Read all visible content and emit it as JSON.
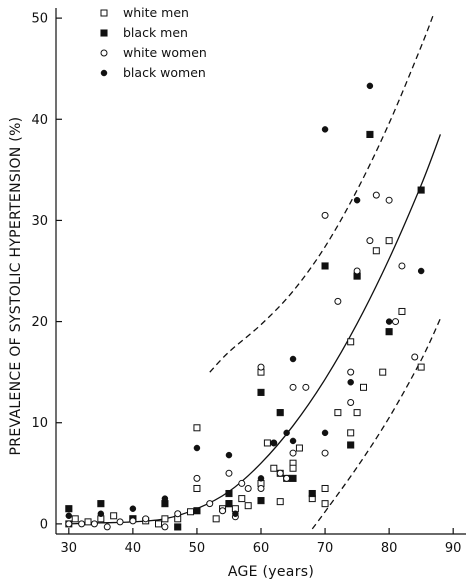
{
  "chart_data": {
    "type": "scatter",
    "xlabel": "AGE (years)",
    "ylabel": "PREVALENCE OF SYSTOLIC HYPERTENSION (%)",
    "xlim": [
      28,
      92
    ],
    "ylim": [
      -1,
      51
    ],
    "x_ticks": [
      30,
      40,
      50,
      60,
      70,
      80,
      90
    ],
    "x_tick_labels": [
      "30",
      "40",
      "50",
      "60",
      "70",
      "80",
      "90"
    ],
    "y_ticks": [
      0,
      10,
      20,
      30,
      40,
      50
    ],
    "y_tick_labels": [
      "0",
      "10",
      "20",
      "30",
      "40",
      "50"
    ],
    "grid": false,
    "legend_position": "top-left",
    "series": [
      {
        "name": "white men",
        "marker": "open-square",
        "points": [
          [
            30,
            0
          ],
          [
            31,
            0.5
          ],
          [
            33,
            0.2
          ],
          [
            35,
            0.5
          ],
          [
            37,
            0.8
          ],
          [
            40,
            0.5
          ],
          [
            42,
            0.3
          ],
          [
            44,
            0
          ],
          [
            45,
            0.5
          ],
          [
            47,
            0.5
          ],
          [
            49,
            1.2
          ],
          [
            50,
            3.5
          ],
          [
            50,
            9.5
          ],
          [
            53,
            0.5
          ],
          [
            54,
            1.5
          ],
          [
            55,
            2
          ],
          [
            56,
            1.5
          ],
          [
            57,
            2.5
          ],
          [
            58,
            1.8
          ],
          [
            60,
            15
          ],
          [
            60,
            4
          ],
          [
            61,
            8
          ],
          [
            62,
            5.5
          ],
          [
            63,
            5
          ],
          [
            63,
            2.2
          ],
          [
            64,
            4.5
          ],
          [
            65,
            6
          ],
          [
            65,
            5.5
          ],
          [
            66,
            7.5
          ],
          [
            68,
            2.5
          ],
          [
            70,
            2
          ],
          [
            70,
            3.5
          ],
          [
            72,
            11
          ],
          [
            74,
            18
          ],
          [
            74,
            9
          ],
          [
            75,
            11
          ],
          [
            75,
            24.5
          ],
          [
            76,
            13.5
          ],
          [
            78,
            27
          ],
          [
            79,
            15
          ],
          [
            80,
            28
          ],
          [
            82,
            21
          ],
          [
            85,
            15.5
          ]
        ]
      },
      {
        "name": "black men",
        "marker": "filled-square",
        "points": [
          [
            30,
            1.5
          ],
          [
            35,
            2
          ],
          [
            40,
            0.5
          ],
          [
            45,
            2
          ],
          [
            47,
            -0.3
          ],
          [
            50,
            1.3
          ],
          [
            55,
            3
          ],
          [
            55,
            2
          ],
          [
            60,
            13
          ],
          [
            60,
            2.3
          ],
          [
            63,
            11
          ],
          [
            65,
            4.5
          ],
          [
            68,
            3
          ],
          [
            70,
            25.5
          ],
          [
            74,
            7.8
          ],
          [
            75,
            24.5
          ],
          [
            77,
            38.5
          ],
          [
            80,
            19
          ],
          [
            85,
            33
          ]
        ]
      },
      {
        "name": "white women",
        "marker": "open-circle",
        "points": [
          [
            30,
            0
          ],
          [
            32,
            0
          ],
          [
            34,
            0
          ],
          [
            36,
            -0.3
          ],
          [
            38,
            0.2
          ],
          [
            40,
            0.3
          ],
          [
            42,
            0.5
          ],
          [
            45,
            -0.3
          ],
          [
            47,
            1
          ],
          [
            50,
            4.5
          ],
          [
            52,
            2
          ],
          [
            54,
            1.3
          ],
          [
            55,
            5
          ],
          [
            56,
            0.7
          ],
          [
            57,
            4
          ],
          [
            58,
            3.5
          ],
          [
            60,
            15.5
          ],
          [
            60,
            3.5
          ],
          [
            62,
            8
          ],
          [
            63,
            5
          ],
          [
            64,
            4.5
          ],
          [
            65,
            13.5
          ],
          [
            65,
            7
          ],
          [
            67,
            13.5
          ],
          [
            70,
            30.5
          ],
          [
            70,
            7
          ],
          [
            72,
            22
          ],
          [
            74,
            15
          ],
          [
            74,
            12
          ],
          [
            75,
            25
          ],
          [
            77,
            28
          ],
          [
            78,
            32.5
          ],
          [
            80,
            32
          ],
          [
            81,
            20
          ],
          [
            82,
            25.5
          ],
          [
            84,
            16.5
          ]
        ]
      },
      {
        "name": "black women",
        "marker": "filled-circle",
        "points": [
          [
            30,
            0.8
          ],
          [
            35,
            1
          ],
          [
            40,
            1.5
          ],
          [
            45,
            2.5
          ],
          [
            50,
            7.5
          ],
          [
            55,
            6.8
          ],
          [
            56,
            1
          ],
          [
            60,
            4.5
          ],
          [
            62,
            8
          ],
          [
            64,
            9
          ],
          [
            65,
            16.3
          ],
          [
            65,
            8.2
          ],
          [
            70,
            39
          ],
          [
            70,
            9
          ],
          [
            74,
            14
          ],
          [
            75,
            32
          ],
          [
            77,
            43.3
          ],
          [
            80,
            20
          ],
          [
            85,
            25
          ]
        ]
      }
    ],
    "fitted_curve": {
      "style": "solid",
      "points": [
        [
          30,
          0
        ],
        [
          35,
          0.1
        ],
        [
          40,
          0.2
        ],
        [
          45,
          0.5
        ],
        [
          50,
          1.5
        ],
        [
          55,
          3.2
        ],
        [
          60,
          6
        ],
        [
          65,
          9.7
        ],
        [
          70,
          14.3
        ],
        [
          75,
          19.8
        ],
        [
          80,
          26.2
        ],
        [
          85,
          33.5
        ],
        [
          88,
          38.5
        ]
      ]
    },
    "confidence_bands": [
      {
        "style": "dashed",
        "points": [
          [
            52,
            15
          ],
          [
            55,
            17
          ],
          [
            60,
            19.7
          ],
          [
            65,
            23
          ],
          [
            70,
            27.4
          ],
          [
            75,
            33
          ],
          [
            80,
            39.6
          ],
          [
            85,
            47.2
          ],
          [
            87,
            50.5
          ]
        ]
      },
      {
        "style": "dashed",
        "points": [
          [
            68,
            -0.5
          ],
          [
            70,
            1.2
          ],
          [
            75,
            5.6
          ],
          [
            80,
            10.5
          ],
          [
            85,
            16.2
          ],
          [
            88,
            20.3
          ]
        ]
      }
    ]
  }
}
